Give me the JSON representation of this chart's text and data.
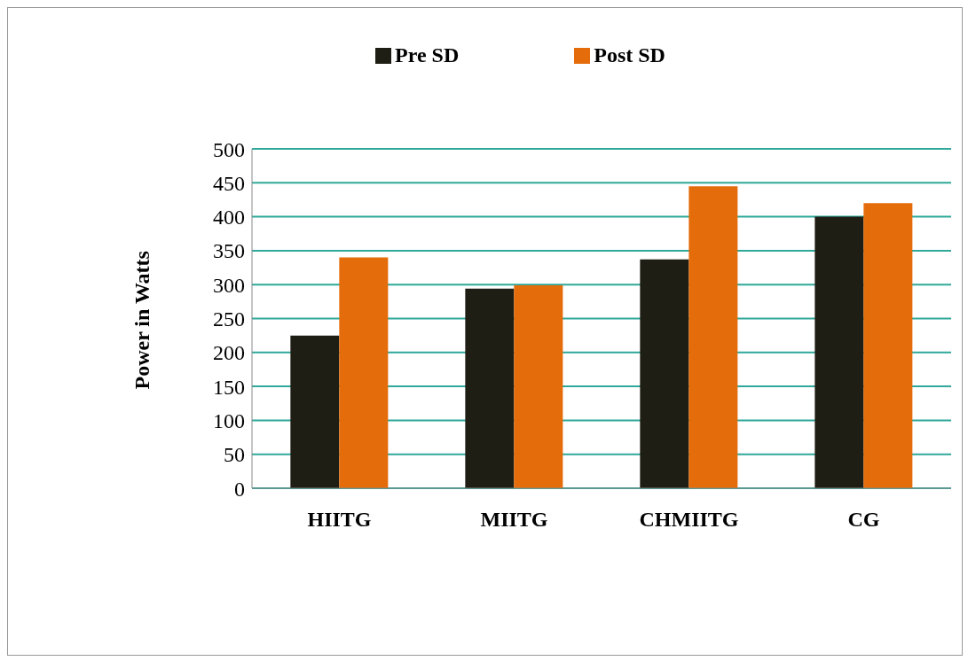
{
  "chart_data": {
    "type": "bar",
    "ylabel": "Power in Watts",
    "categories": [
      "HIITG",
      "MIITG",
      "CHMIITG",
      "CG"
    ],
    "series": [
      {
        "name": "Pre SD",
        "color": "#1f1e14",
        "values": [
          225,
          294,
          337,
          400
        ]
      },
      {
        "name": "Post SD",
        "color": "#e46c0a",
        "values": [
          340,
          299,
          445,
          420
        ]
      }
    ],
    "ylim": [
      0,
      500
    ],
    "yticks": [
      0,
      50,
      100,
      150,
      200,
      250,
      300,
      350,
      400,
      450,
      500
    ],
    "grid": "y",
    "legend": "top"
  }
}
